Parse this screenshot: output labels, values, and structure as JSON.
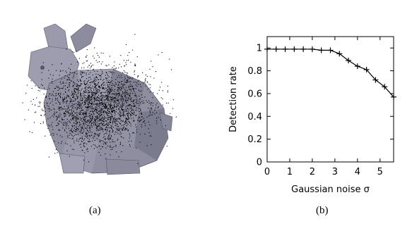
{
  "figure": {
    "caption_a": "(a)",
    "caption_b": "(b)"
  },
  "panel_a": {
    "image": "noisy-bunny-point-cloud",
    "mesh_color": "#8f8fa0",
    "point_color": "#000000"
  },
  "chart_data": {
    "type": "line",
    "title": "",
    "xlabel": "Gaussian noise σ",
    "ylabel": "Detection rate",
    "xlim": [
      0,
      5.6
    ],
    "ylim": [
      0,
      1.1
    ],
    "xticks": [
      0,
      1,
      2,
      3,
      4,
      5
    ],
    "yticks": [
      0,
      0.2,
      0.4,
      0.6,
      0.8,
      1
    ],
    "xtick_labels": [
      "0",
      "1",
      "2",
      "3",
      "4",
      "5"
    ],
    "ytick_labels": [
      "0",
      "0.2",
      "0.4",
      "0.6",
      "0.8",
      "1"
    ],
    "grid": false,
    "marker": "plus",
    "line_color": "#000000",
    "series": [
      {
        "x": [
          0,
          0.4,
          0.8,
          1.2,
          1.6,
          2.0,
          2.4,
          2.8,
          3.2,
          3.6,
          4.0,
          4.4,
          4.8,
          5.2,
          5.6
        ],
        "values": [
          0.99,
          0.99,
          0.99,
          0.99,
          0.99,
          0.99,
          0.98,
          0.98,
          0.95,
          0.89,
          0.84,
          0.81,
          0.72,
          0.66,
          0.57
        ]
      }
    ]
  }
}
